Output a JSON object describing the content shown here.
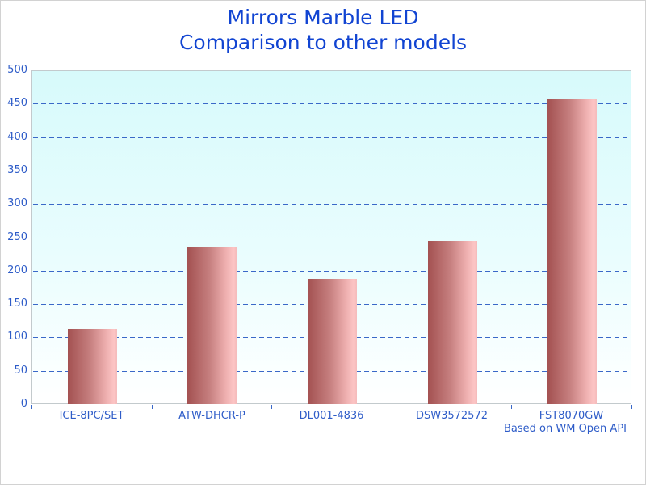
{
  "title": {
    "line1": "Mirrors Marble LED",
    "line2": "Comparison to other models"
  },
  "footer": "Based on WM Open API",
  "colors": {
    "title_text": "#1144d2",
    "axis_label_text": "#2e5cc8",
    "gridline": "#3a68c8",
    "plot_border": "#c3cacd",
    "plot_bg_top": "#d7fafb",
    "plot_bg_bottom": "#ffffff",
    "bar_dark": "#a35151",
    "bar_light": "#fcc5c5"
  },
  "chart_data": {
    "type": "bar",
    "title": "Mirrors Marble LED — Comparison to other models",
    "categories": [
      "ICE-8PC/SET",
      "ATW-DHCR-P",
      "DL001-4836",
      "DSW3572572",
      "FST8070GW"
    ],
    "values": [
      113,
      235,
      188,
      245,
      458
    ],
    "xlabel": "",
    "ylabel": "",
    "ylim": [
      0,
      500
    ],
    "yticks": [
      0,
      50,
      100,
      150,
      200,
      250,
      300,
      350,
      400,
      450,
      500
    ],
    "grid": "horizontal-dashed",
    "legend_position": "none",
    "annotation": "Based on WM Open API"
  }
}
